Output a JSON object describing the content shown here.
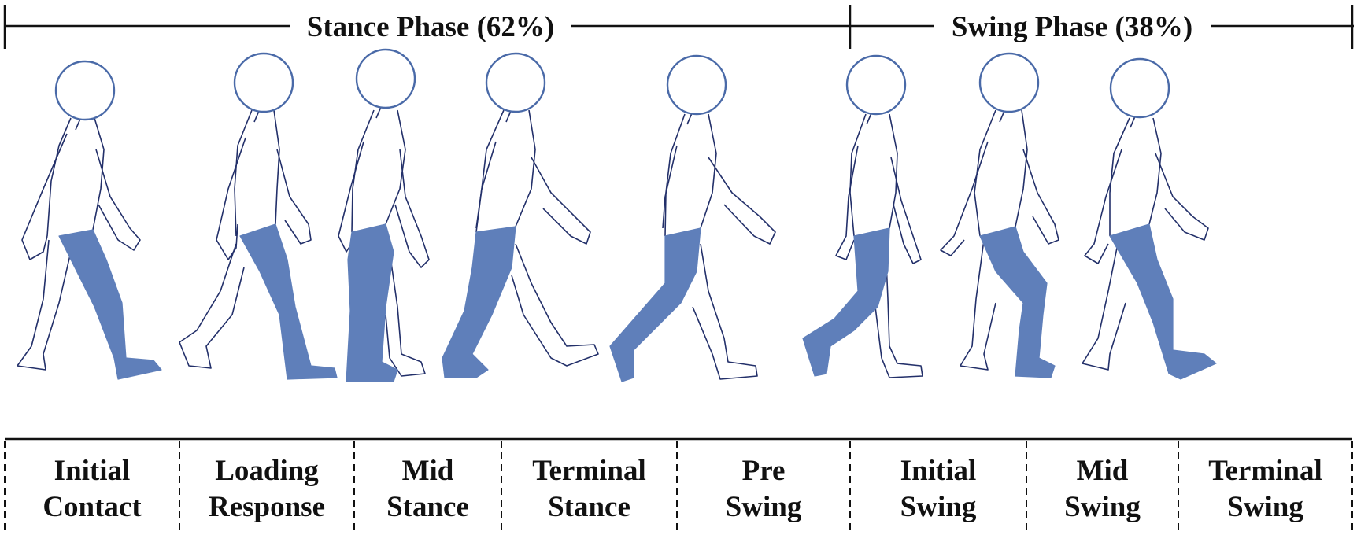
{
  "phases": [
    {
      "label": "Stance Phase (62%)"
    },
    {
      "label": "Swing Phase (38%)"
    }
  ],
  "stages": [
    {
      "line1": "Initial",
      "line2": "Contact"
    },
    {
      "line1": "Loading",
      "line2": "Response"
    },
    {
      "line1": "Mid",
      "line2": "Stance"
    },
    {
      "line1": "Terminal",
      "line2": "Stance"
    },
    {
      "line1": "Pre",
      "line2": "Swing"
    },
    {
      "line1": "Initial",
      "line2": "Swing"
    },
    {
      "line1": "Mid",
      "line2": "Swing"
    },
    {
      "line1": "Terminal",
      "line2": "Swing"
    }
  ],
  "colors": {
    "highlight_leg": "#5f7fba",
    "head_outline": "#4a6aa8",
    "body_outline": "#23306a",
    "line": "#111111"
  },
  "figures": [
    {
      "name": "initial-contact",
      "highlight": "right-leg"
    },
    {
      "name": "loading-response",
      "highlight": "right-leg"
    },
    {
      "name": "mid-stance",
      "highlight": "right-leg"
    },
    {
      "name": "terminal-stance",
      "highlight": "right-leg"
    },
    {
      "name": "pre-swing",
      "highlight": "right-leg"
    },
    {
      "name": "initial-swing",
      "highlight": "right-leg"
    },
    {
      "name": "mid-swing",
      "highlight": "right-leg"
    },
    {
      "name": "terminal-swing",
      "highlight": "right-leg"
    }
  ]
}
